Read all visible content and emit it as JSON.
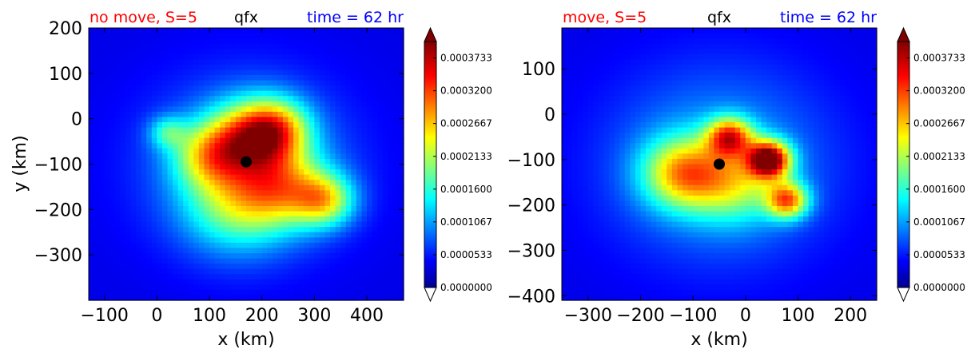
{
  "chart_data": [
    {
      "type": "heatmap",
      "title_left": "no move, S=5",
      "title_center": "qfx",
      "title_right": "time = 62 hr",
      "title_left_color": "#ff0000",
      "title_center_color": "#000000",
      "title_right_color": "#0000ff",
      "xlabel": "x (km)",
      "ylabel": "y (km)",
      "xlim": [
        -130,
        470
      ],
      "ylim": [
        -400,
        200
      ],
      "xticks": [
        -100,
        0,
        100,
        200,
        300,
        400
      ],
      "yticks": [
        200,
        100,
        0,
        -100,
        -200,
        -300
      ],
      "xtick_labels": [
        "−100",
        "0",
        "100",
        "200",
        "300",
        "400"
      ],
      "ytick_labels": [
        "200",
        "100",
        "0",
        "−100",
        "−200",
        "−300"
      ],
      "center_marker": {
        "x": 170,
        "y": -95
      },
      "features": [
        {
          "x": 180,
          "y": -40,
          "strength": 0.5,
          "spread": 55
        },
        {
          "x": 230,
          "y": -20,
          "strength": 0.35,
          "spread": 45
        },
        {
          "x": 100,
          "y": -80,
          "strength": 0.35,
          "spread": 50
        },
        {
          "x": 240,
          "y": -150,
          "strength": 0.38,
          "spread": 60
        },
        {
          "x": 150,
          "y": -190,
          "strength": 0.3,
          "spread": 70
        },
        {
          "x": 320,
          "y": -180,
          "strength": 0.4,
          "spread": 40
        },
        {
          "x": 20,
          "y": -30,
          "strength": 0.22,
          "spread": 25
        },
        {
          "x": 170,
          "y": -100,
          "strength": 0.18,
          "spread": 140
        }
      ],
      "colorbar": {
        "min": 0.0,
        "max": 0.0004,
        "tick_labels": [
          "0.0000000",
          "0.0000533",
          "0.0001067",
          "0.0001600",
          "0.0002133",
          "0.0002667",
          "0.0003200",
          "0.0003733"
        ],
        "tick_values": [
          0.0,
          5.33e-05,
          0.0001067,
          0.00016,
          0.0002133,
          0.0002667,
          0.00032,
          0.0003733
        ]
      }
    },
    {
      "type": "heatmap",
      "title_left": "move, S=5",
      "title_center": "qfx",
      "title_right": "time = 62 hr",
      "title_left_color": "#ff0000",
      "title_center_color": "#000000",
      "title_right_color": "#0000ff",
      "xlabel": "x (km)",
      "ylabel": "",
      "xlim": [
        -350,
        250
      ],
      "ylim": [
        -410,
        190
      ],
      "xticks": [
        -300,
        -200,
        -100,
        0,
        100,
        200
      ],
      "yticks": [
        100,
        0,
        -100,
        -200,
        -300,
        -400
      ],
      "xtick_labels": [
        "−300",
        "−200",
        "−100",
        "0",
        "100",
        "200"
      ],
      "ytick_labels": [
        "100",
        "0",
        "−100",
        "−200",
        "−300",
        "−400"
      ],
      "center_marker": {
        "x": -50,
        "y": -110
      },
      "features": [
        {
          "x": -120,
          "y": -130,
          "strength": 0.45,
          "spread": 55
        },
        {
          "x": -30,
          "y": -50,
          "strength": 0.55,
          "spread": 30
        },
        {
          "x": 45,
          "y": -100,
          "strength": 0.8,
          "spread": 28
        },
        {
          "x": 80,
          "y": -190,
          "strength": 0.55,
          "spread": 28
        },
        {
          "x": -20,
          "y": -150,
          "strength": 0.3,
          "spread": 60
        },
        {
          "x": -50,
          "y": -110,
          "strength": 0.2,
          "spread": 150
        }
      ],
      "colorbar": {
        "min": 0.0,
        "max": 0.0004,
        "tick_labels": [
          "0.0000000",
          "0.0000533",
          "0.0001067",
          "0.0001600",
          "0.0002133",
          "0.0002667",
          "0.0003200",
          "0.0003733"
        ],
        "tick_values": [
          0.0,
          5.33e-05,
          0.0001067,
          0.00016,
          0.0002133,
          0.0002667,
          0.00032,
          0.0003733
        ]
      }
    }
  ]
}
